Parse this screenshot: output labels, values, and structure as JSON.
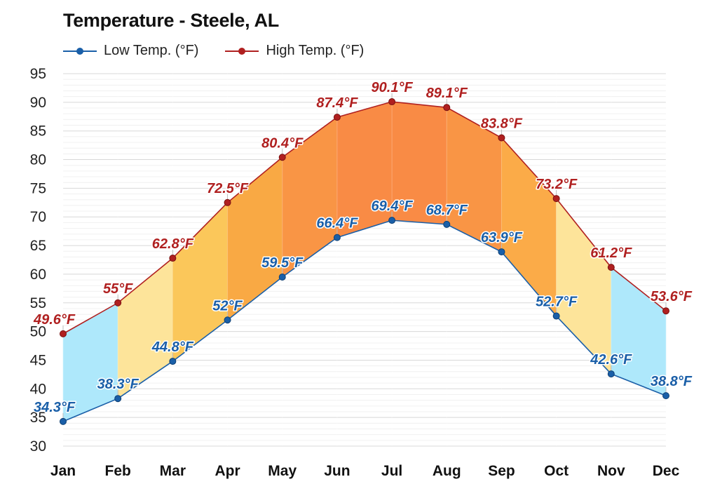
{
  "chart_data": {
    "type": "line",
    "title": "Temperature - Steele, AL",
    "xlabel": "",
    "ylabel": "",
    "categories": [
      "Jan",
      "Feb",
      "Mar",
      "Apr",
      "May",
      "Jun",
      "Jul",
      "Aug",
      "Sep",
      "Oct",
      "Nov",
      "Dec"
    ],
    "ylim": [
      30,
      95
    ],
    "yticks": [
      30,
      35,
      40,
      45,
      50,
      55,
      60,
      65,
      70,
      75,
      80,
      85,
      90,
      95
    ],
    "grid": true,
    "legend_position": "top-left",
    "series": [
      {
        "name": "Low Temp. (°F)",
        "color": "#1a5fa8",
        "values": [
          34.3,
          38.3,
          44.8,
          52,
          59.5,
          66.4,
          69.4,
          68.7,
          63.9,
          52.7,
          42.6,
          38.8
        ],
        "labels": [
          "34.3°F",
          "38.3°F",
          "44.8°F",
          "52°F",
          "59.5°F",
          "66.4°F",
          "69.4°F",
          "68.7°F",
          "63.9°F",
          "52.7°F",
          "42.6°F",
          "38.8°F"
        ]
      },
      {
        "name": "High Temp. (°F)",
        "color": "#b02020",
        "values": [
          49.6,
          55,
          62.8,
          72.5,
          80.4,
          87.4,
          90.1,
          89.1,
          83.8,
          73.2,
          61.2,
          53.6
        ],
        "labels": [
          "49.6°F",
          "55°F",
          "62.8°F",
          "72.5°F",
          "80.4°F",
          "87.4°F",
          "90.1°F",
          "89.1°F",
          "83.8°F",
          "73.2°F",
          "61.2°F",
          "53.6°F"
        ]
      }
    ],
    "band_fill_colors": [
      "#aee8fb",
      "#fde49a",
      "#fbc75a",
      "#f9a944",
      "#f99545",
      "#f98b45",
      "#f98b45",
      "#f99545",
      "#fbab48",
      "#fde49a",
      "#aee8fb",
      "#aee8fb"
    ]
  }
}
